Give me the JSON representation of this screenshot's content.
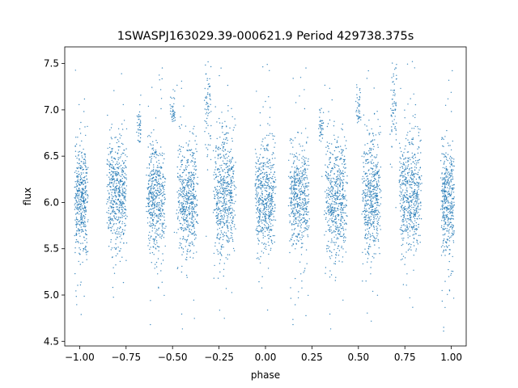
{
  "chart_data": {
    "type": "scatter",
    "title": "1SWASPJ163029.39-000621.9 Period 429738.375s",
    "xlabel": "phase",
    "ylabel": "flux",
    "xlim": [
      -1.08,
      1.08
    ],
    "ylim": [
      4.45,
      7.68
    ],
    "xticks": [
      -1.0,
      -0.75,
      -0.5,
      -0.25,
      0.0,
      0.25,
      0.5,
      0.75,
      1.0
    ],
    "xtick_labels": [
      "−1.00",
      "−0.75",
      "−0.50",
      "−0.25",
      "0.00",
      "0.25",
      "0.50",
      "0.75",
      "1.00"
    ],
    "yticks": [
      4.5,
      5.0,
      5.5,
      6.0,
      6.5,
      7.0,
      7.5
    ],
    "ytick_labels": [
      "4.5",
      "5.0",
      "5.5",
      "6.0",
      "6.5",
      "7.0",
      "7.5"
    ],
    "grid": false,
    "marker_color": "#1f77b4",
    "clusters": [
      {
        "center": -0.99,
        "width": 0.04,
        "mean": 6.05,
        "spread": 0.32,
        "count": 420
      },
      {
        "center": -0.8,
        "width": 0.06,
        "mean": 6.08,
        "spread": 0.3,
        "count": 520
      },
      {
        "center": -0.59,
        "width": 0.055,
        "mean": 6.08,
        "spread": 0.3,
        "count": 500
      },
      {
        "center": -0.42,
        "width": 0.06,
        "mean": 6.05,
        "spread": 0.3,
        "count": 520
      },
      {
        "center": -0.22,
        "width": 0.065,
        "mean": 6.08,
        "spread": 0.32,
        "count": 560
      },
      {
        "center": 0.0,
        "width": 0.06,
        "mean": 6.05,
        "spread": 0.3,
        "count": 540
      },
      {
        "center": 0.18,
        "width": 0.06,
        "mean": 6.08,
        "spread": 0.28,
        "count": 500
      },
      {
        "center": 0.38,
        "width": 0.065,
        "mean": 6.05,
        "spread": 0.32,
        "count": 540
      },
      {
        "center": 0.57,
        "width": 0.055,
        "mean": 6.05,
        "spread": 0.3,
        "count": 500
      },
      {
        "center": 0.78,
        "width": 0.065,
        "mean": 6.08,
        "spread": 0.32,
        "count": 560
      },
      {
        "center": 0.98,
        "width": 0.04,
        "mean": 6.05,
        "spread": 0.3,
        "count": 420
      },
      {
        "center": -0.68,
        "width": 0.015,
        "mean": 6.85,
        "spread": 0.12,
        "count": 40
      },
      {
        "center": -0.5,
        "width": 0.015,
        "mean": 6.98,
        "spread": 0.1,
        "count": 40
      },
      {
        "center": -0.31,
        "width": 0.02,
        "mean": 7.05,
        "spread": 0.25,
        "count": 70
      },
      {
        "center": 0.3,
        "width": 0.015,
        "mean": 6.85,
        "spread": 0.12,
        "count": 40
      },
      {
        "center": 0.5,
        "width": 0.015,
        "mean": 6.98,
        "spread": 0.1,
        "count": 40
      },
      {
        "center": 0.69,
        "width": 0.02,
        "mean": 7.05,
        "spread": 0.25,
        "count": 70
      }
    ]
  }
}
